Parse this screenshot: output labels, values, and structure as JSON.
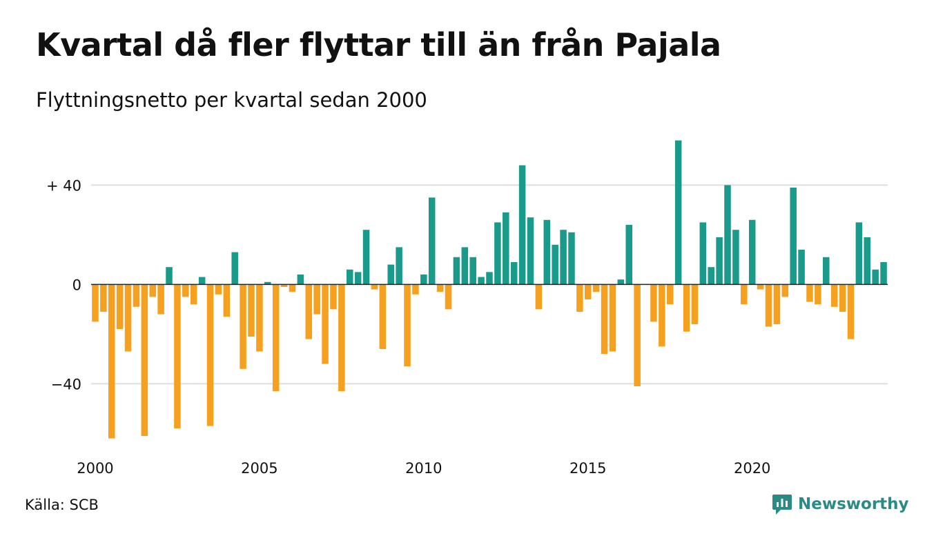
{
  "header": {
    "title": "Kvartal då fler flyttar till än från Pajala",
    "subtitle": "Flyttningsnetto per kvartal sedan 2000"
  },
  "footer": {
    "source": "Källa: SCB",
    "logo_text": "Newsworthy",
    "logo_icon": "newsworthy-logo-icon"
  },
  "colors": {
    "positive": "#1a9a8a",
    "negative": "#f5a01e",
    "grid": "#dddddd",
    "baseline": "#222222",
    "logo": "#2a8a86"
  },
  "chart_data": {
    "type": "bar",
    "title": "Kvartal då fler flyttar till än från Pajala",
    "subtitle": "Flyttningsnetto per kvartal sedan 2000",
    "x_start": "2000 Q1",
    "x_ticks": [
      {
        "label": "2000",
        "year": 2000
      },
      {
        "label": "2005",
        "year": 2005
      },
      {
        "label": "2010",
        "year": 2010
      },
      {
        "label": "2015",
        "year": 2015
      },
      {
        "label": "2020",
        "year": 2020
      }
    ],
    "y_ticks": [
      {
        "label": "+ 40",
        "value": 40
      },
      {
        "label": "0",
        "value": 0
      },
      {
        "label": "−40",
        "value": -40
      }
    ],
    "ylim": [
      -66,
      59
    ],
    "grid": true,
    "values": [
      -15,
      -11,
      -62,
      -18,
      -27,
      -9,
      -61,
      -5,
      -12,
      7,
      -58,
      -5,
      -8,
      3,
      -57,
      -4,
      -13,
      13,
      -34,
      -21,
      -27,
      1,
      -43,
      -1,
      -3,
      4,
      -22,
      -12,
      -32,
      -10,
      -43,
      6,
      5,
      22,
      -2,
      -26,
      8,
      15,
      -33,
      -4,
      4,
      35,
      -3,
      -10,
      11,
      15,
      11,
      3,
      5,
      25,
      29,
      9,
      48,
      27,
      -10,
      26,
      16,
      22,
      21,
      -11,
      -6,
      -3,
      -28,
      -27,
      2,
      24,
      -41,
      0,
      -15,
      -25,
      -8,
      58,
      -19,
      -16,
      25,
      7,
      19,
      40,
      22,
      -8,
      26,
      -2,
      -17,
      -16,
      -5,
      39,
      14,
      -7,
      -8,
      11,
      -9,
      -11,
      -22,
      25,
      19,
      6,
      9
    ]
  }
}
